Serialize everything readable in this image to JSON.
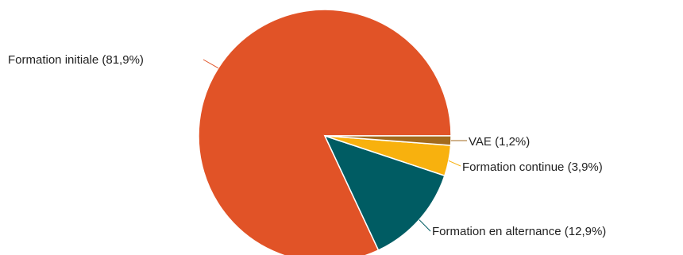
{
  "chart_data": {
    "type": "pie",
    "title": "",
    "legend": "none",
    "slices": [
      {
        "label": "Formation initiale (81,9%)",
        "value": 81.9,
        "color": "#e15327"
      },
      {
        "label": "Formation en alternance (12,9%)",
        "value": 12.9,
        "color": "#005c63"
      },
      {
        "label": "Formation continue (3,9%)",
        "value": 3.9,
        "color": "#f8b10e"
      },
      {
        "label": "VAE (1,2%)",
        "value": 1.2,
        "color": "#a26a1d"
      }
    ]
  }
}
